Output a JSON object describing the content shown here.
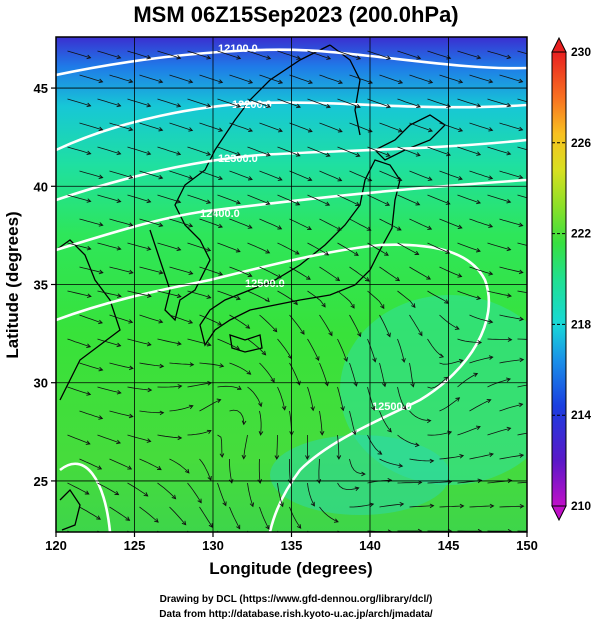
{
  "chart_data": {
    "type": "map",
    "title": "MSM 06Z15Sep2023 (200.0hPa)",
    "xlabel": "Longitude (degrees)",
    "ylabel": "Latitude  (degrees)",
    "xlim": [
      120,
      150
    ],
    "ylim": [
      22.4,
      47.6
    ],
    "x_ticks": [
      "120",
      "125",
      "130",
      "135",
      "140",
      "145",
      "150"
    ],
    "x_tick_values": [
      120,
      125,
      130,
      135,
      140,
      145,
      150
    ],
    "y_ticks": [
      "25",
      "30",
      "35",
      "40",
      "45"
    ],
    "y_tick_values": [
      25,
      30,
      35,
      40,
      45
    ],
    "colorbar": {
      "min": 210,
      "max": 230,
      "tick_labels": [
        "210",
        "214",
        "218",
        "222",
        "226",
        "230"
      ],
      "tick_values": [
        210,
        214,
        218,
        222,
        226,
        230
      ],
      "colors": [
        "#c010c8",
        "#1a3ee0",
        "#18d8d8",
        "#38e040",
        "#f8c020",
        "#e82020"
      ]
    },
    "contour_levels": [
      12100,
      12200,
      12300,
      12400,
      12500
    ],
    "grid": true
  },
  "map": {
    "contour_labels": [
      "12100.0",
      "12200.0",
      "12300.0",
      "12400.0",
      "12500.0",
      "12500.0"
    ]
  },
  "footer": {
    "drawing": "Drawing by DCL (https://www.gfd-dennou.org/library/dcl/)",
    "data": "Data from http://database.rish.kyoto-u.ac.jp/arch/jmadata/"
  }
}
